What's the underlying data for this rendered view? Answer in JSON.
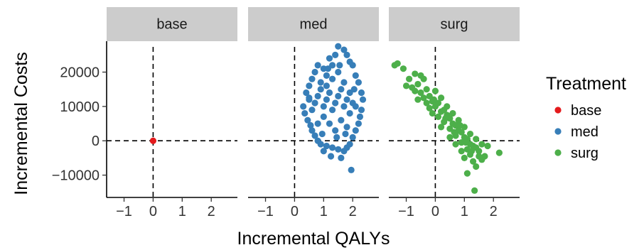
{
  "chart_data": {
    "type": "scatter",
    "title": "",
    "xlabel": "Incremental QALYs",
    "ylabel": "Incremental Costs",
    "xlim": [
      -1.6,
      2.9
    ],
    "ylim": [
      -16500,
      29000
    ],
    "x_ticks": [
      -1,
      0,
      1,
      2
    ],
    "x_tick_labels": [
      "−1",
      "0",
      "1",
      "2"
    ],
    "y_ticks": [
      -10000,
      0,
      10000,
      20000
    ],
    "y_tick_labels": [
      "−10000",
      "0",
      "10000",
      "20000"
    ],
    "reference_lines": {
      "x": 0,
      "y": 0,
      "style": "dashed"
    },
    "grid": false,
    "legend_title": "Treatment",
    "legend_position": "right",
    "facets": [
      {
        "label": "base",
        "color": "#e41a1c",
        "points": [
          [
            0,
            0
          ]
        ]
      },
      {
        "label": "med",
        "color": "#377eb8",
        "points": [
          [
            0.4,
            14000
          ],
          [
            0.5,
            12000
          ],
          [
            0.3,
            10000
          ],
          [
            0.35,
            8000
          ],
          [
            0.45,
            6000
          ],
          [
            0.5,
            16000
          ],
          [
            0.6,
            18000
          ],
          [
            0.7,
            20000
          ],
          [
            0.8,
            22000
          ],
          [
            0.9,
            17000
          ],
          [
            1.0,
            21000
          ],
          [
            1.1,
            19000
          ],
          [
            1.2,
            24000
          ],
          [
            1.3,
            22000
          ],
          [
            1.4,
            25000
          ],
          [
            1.5,
            27500
          ],
          [
            1.7,
            26500
          ],
          [
            1.8,
            25000
          ],
          [
            1.9,
            23000
          ],
          [
            2.0,
            22000
          ],
          [
            2.1,
            19000
          ],
          [
            2.2,
            17000
          ],
          [
            2.3,
            14000
          ],
          [
            2.35,
            12000
          ],
          [
            2.3,
            9000
          ],
          [
            2.25,
            7000
          ],
          [
            2.2,
            5000
          ],
          [
            2.1,
            3000
          ],
          [
            2.0,
            1000
          ],
          [
            1.9,
            -1000
          ],
          [
            1.8,
            -2000
          ],
          [
            1.7,
            -3000
          ],
          [
            1.5,
            -2500
          ],
          [
            1.3,
            -2000
          ],
          [
            1.1,
            -1500
          ],
          [
            0.9,
            -1000
          ],
          [
            0.8,
            0
          ],
          [
            0.7,
            1500
          ],
          [
            0.6,
            3000
          ],
          [
            0.55,
            4500
          ],
          [
            1.6,
            -5000
          ],
          [
            1.95,
            -8500
          ],
          [
            1.25,
            -4500
          ],
          [
            1.0,
            -3000
          ],
          [
            0.5,
            12500
          ],
          [
            0.6,
            9000
          ],
          [
            0.7,
            11000
          ],
          [
            0.8,
            13000
          ],
          [
            0.9,
            15000
          ],
          [
            1.0,
            10000
          ],
          [
            1.1,
            12000
          ],
          [
            1.2,
            14000
          ],
          [
            1.3,
            9000
          ],
          [
            1.4,
            11000
          ],
          [
            1.5,
            13000
          ],
          [
            1.6,
            15000
          ],
          [
            1.7,
            10000
          ],
          [
            1.8,
            12000
          ],
          [
            1.9,
            14000
          ],
          [
            2.0,
            11000
          ],
          [
            1.2,
            5000
          ],
          [
            1.4,
            3000
          ],
          [
            1.6,
            6000
          ],
          [
            1.8,
            4000
          ],
          [
            1.0,
            7000
          ],
          [
            0.8,
            5000
          ],
          [
            1.3,
            18000
          ],
          [
            1.5,
            20000
          ],
          [
            1.1,
            16000
          ],
          [
            1.7,
            17000
          ],
          [
            1.9,
            8000
          ],
          [
            2.1,
            10000
          ],
          [
            0.95,
            2000
          ],
          [
            1.45,
            1000
          ],
          [
            1.75,
            2000
          ],
          [
            1.15,
            21000
          ],
          [
            1.55,
            22000
          ],
          [
            2.05,
            15000
          ]
        ]
      },
      {
        "label": "surg",
        "color": "#4daf4a",
        "points": [
          [
            -1.4,
            22000
          ],
          [
            -1.3,
            22500
          ],
          [
            -1.1,
            21000
          ],
          [
            -0.9,
            18000
          ],
          [
            -0.7,
            19500
          ],
          [
            -0.5,
            19000
          ],
          [
            -0.4,
            18000
          ],
          [
            -1.0,
            16000
          ],
          [
            -0.8,
            15500
          ],
          [
            -0.6,
            16500
          ],
          [
            -0.5,
            14000
          ],
          [
            -0.3,
            15000
          ],
          [
            -0.2,
            13000
          ],
          [
            -0.6,
            12000
          ],
          [
            -0.4,
            12500
          ],
          [
            -0.1,
            11500
          ],
          [
            0.0,
            10000
          ],
          [
            0.1,
            11000
          ],
          [
            -0.2,
            9500
          ],
          [
            0.2,
            8500
          ],
          [
            0.3,
            9000
          ],
          [
            0.1,
            7000
          ],
          [
            0.4,
            7500
          ],
          [
            0.5,
            6500
          ],
          [
            0.3,
            5500
          ],
          [
            0.6,
            5000
          ],
          [
            0.7,
            4500
          ],
          [
            0.5,
            3500
          ],
          [
            0.8,
            3000
          ],
          [
            0.9,
            2500
          ],
          [
            0.7,
            1500
          ],
          [
            1.0,
            1000
          ],
          [
            1.1,
            500
          ],
          [
            0.9,
            -500
          ],
          [
            1.2,
            -1000
          ],
          [
            1.3,
            -1500
          ],
          [
            1.1,
            -2500
          ],
          [
            1.4,
            -2000
          ],
          [
            1.5,
            -3000
          ],
          [
            1.2,
            -4000
          ],
          [
            1.0,
            -5000
          ],
          [
            1.3,
            -6000
          ],
          [
            1.6,
            -5500
          ],
          [
            1.7,
            -4500
          ],
          [
            1.4,
            -7500
          ],
          [
            1.1,
            -9500
          ],
          [
            1.35,
            -14500
          ],
          [
            2.2,
            -3500
          ],
          [
            1.8,
            -1500
          ],
          [
            0.0,
            14500
          ],
          [
            0.2,
            12500
          ],
          [
            -0.1,
            8000
          ],
          [
            0.4,
            10000
          ],
          [
            0.6,
            8000
          ],
          [
            0.8,
            6000
          ],
          [
            1.0,
            4000
          ],
          [
            1.2,
            2000
          ],
          [
            1.4,
            500
          ],
          [
            1.6,
            -1000
          ],
          [
            0.2,
            4000
          ],
          [
            0.5,
            1000
          ],
          [
            0.7,
            -1000
          ],
          [
            0.9,
            -3000
          ],
          [
            -0.3,
            11000
          ],
          [
            -0.7,
            14500
          ],
          [
            0.65,
            2500
          ],
          [
            1.05,
            -500
          ],
          [
            1.5,
            -4500
          ],
          [
            0.35,
            6500
          ],
          [
            -0.05,
            12000
          ],
          [
            0.85,
            4500
          ],
          [
            1.25,
            -3000
          ]
        ]
      }
    ]
  }
}
